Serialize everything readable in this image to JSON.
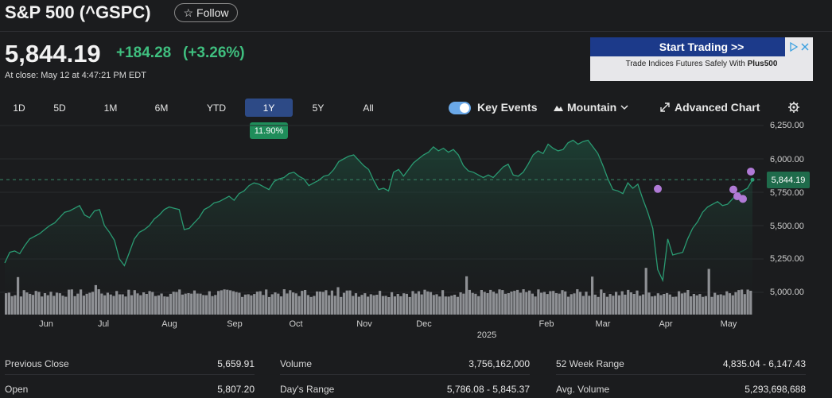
{
  "header": {
    "title": "S&P 500 (^GSPC)",
    "follow_label": "Follow",
    "follow_icon": "star-icon"
  },
  "quote": {
    "price": "5,844.19",
    "change": "+184.28",
    "change_pct": "(+3.26%)",
    "as_of": "At close: May 12 at 4:47:21 PM EDT",
    "up_color": "#3fbf7f"
  },
  "ad": {
    "headline": "Start Trading >>",
    "body_prefix": "Trade Indices Futures Safely With ",
    "body_brand": "Plus500",
    "headline_bg": "#1c3a8a"
  },
  "ranges": [
    "1D",
    "5D",
    "1M",
    "6M",
    "YTD",
    "1Y",
    "5Y",
    "All"
  ],
  "selected_range": "1Y",
  "range_change": "11.90%",
  "toolbar": {
    "key_events_label": "Key Events",
    "key_events_on": true,
    "chart_type_label": "Mountain",
    "advanced_label": "Advanced Chart",
    "settings_icon": "gear-icon"
  },
  "chart_data": {
    "type": "area",
    "x_labels": [
      "Jun",
      "Jul",
      "Aug",
      "Sep",
      "Oct",
      "Nov",
      "Dec",
      "2025",
      "Feb",
      "Mar",
      "Apr",
      "May"
    ],
    "y_ticks": [
      "6,250.00",
      "6,000.00",
      "5,750.00",
      "5,500.00",
      "5,250.00",
      "5,000.00"
    ],
    "current_value_label": "5,844.19",
    "prev_close_line": 5844.19,
    "ylim": [
      4950,
      6260
    ],
    "series": [
      {
        "values": [
          5220,
          5300,
          5310,
          5290,
          5350,
          5400,
          5420,
          5440,
          5470,
          5500,
          5520,
          5560,
          5600,
          5610,
          5630,
          5650,
          5580,
          5560,
          5610,
          5620,
          5500,
          5450,
          5390,
          5250,
          5200,
          5300,
          5400,
          5450,
          5470,
          5500,
          5550,
          5580,
          5620,
          5640,
          5630,
          5620,
          5470,
          5480,
          5520,
          5560,
          5620,
          5640,
          5670,
          5680,
          5700,
          5720,
          5690,
          5740,
          5760,
          5800,
          5820,
          5810,
          5790,
          5770,
          5830,
          5850,
          5860,
          5890,
          5900,
          5870,
          5850,
          5800,
          5820,
          5840,
          5870,
          5880,
          5920,
          5980,
          6000,
          6020,
          6030,
          5990,
          5950,
          5920,
          5840,
          5770,
          5780,
          5760,
          5900,
          5920,
          5870,
          5920,
          5970,
          6000,
          6030,
          6050,
          6090,
          6060,
          6080,
          6050,
          6070,
          6030,
          5950,
          5910,
          5900,
          5880,
          5860,
          5880,
          5860,
          5900,
          5940,
          5960,
          5880,
          5870,
          5900,
          5960,
          6030,
          6060,
          6040,
          6110,
          6080,
          6060,
          6070,
          6120,
          6140,
          6110,
          6130,
          6140,
          6090,
          6040,
          5950,
          5850,
          5770,
          5760,
          5740,
          5820,
          5780,
          5810,
          5700,
          5600,
          5480,
          5170,
          5090,
          5400,
          5280,
          5290,
          5300,
          5400,
          5480,
          5530,
          5600,
          5640,
          5660,
          5680,
          5650,
          5660,
          5700,
          5740,
          5760,
          5780,
          5844
        ]
      }
    ],
    "volume_spikes": [
      0.6,
      0.9
    ],
    "key_events": [
      5775,
      5770,
      5720,
      5700,
      5905
    ]
  },
  "stats": [
    [
      {
        "label": "Previous Close",
        "value": "5,659.91"
      },
      {
        "label": "Volume",
        "value": "3,756,162,000"
      },
      {
        "label": "52 Week Range",
        "value": "4,835.04 - 6,147.43"
      }
    ],
    [
      {
        "label": "Open",
        "value": "5,807.20"
      },
      {
        "label": "Day's Range",
        "value": "5,786.08 - 5,845.37"
      },
      {
        "label": "Avg. Volume",
        "value": "5,293,698,688"
      }
    ]
  ]
}
